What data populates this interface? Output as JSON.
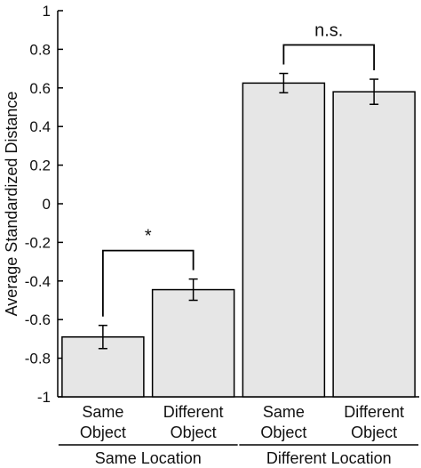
{
  "chart_data": {
    "type": "bar",
    "ylabel": "Average Standardized Distance",
    "ylim": [
      -1,
      1
    ],
    "yticks": [
      -1,
      -0.8,
      -0.6,
      -0.4,
      -0.2,
      0,
      0.2,
      0.4,
      0.6,
      0.8,
      1
    ],
    "ytick_labels": [
      "-1",
      "-0.8",
      "-0.6",
      "-0.4",
      "-0.2",
      "0",
      "0.2",
      "0.4",
      "0.6",
      "0.8",
      "1"
    ],
    "categories": [
      {
        "line1": "Same",
        "line2": "Object"
      },
      {
        "line1": "Different",
        "line2": "Object"
      },
      {
        "line1": "Same",
        "line2": "Object"
      },
      {
        "line1": "Different",
        "line2": "Object"
      }
    ],
    "values": [
      -0.69,
      -0.445,
      0.625,
      0.58
    ],
    "errors": [
      0.06,
      0.055,
      0.05,
      0.065
    ],
    "groups": [
      {
        "label": "Same Location",
        "members": [
          0,
          1
        ]
      },
      {
        "label": "Different Location",
        "members": [
          2,
          3
        ]
      }
    ],
    "annotations": [
      {
        "text": "*",
        "bars": [
          0,
          1
        ]
      },
      {
        "text": "n.s.",
        "bars": [
          2,
          3
        ]
      }
    ],
    "grid": false,
    "colors": {
      "bar_fill": "#e6e6e6",
      "bar_stroke": "#000000"
    }
  }
}
